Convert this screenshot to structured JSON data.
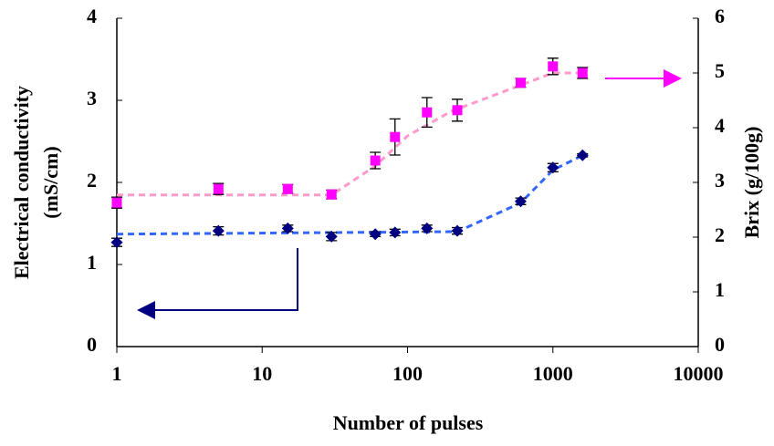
{
  "chart_data": {
    "type": "scatter",
    "xlabel": "Number of pulses",
    "ylabel": [
      "Electrical conductivity",
      "(mS/cm)"
    ],
    "y2label": "Brix (g/100g)",
    "xscale": "log",
    "xlim": [
      1,
      10000
    ],
    "xticks": [
      1,
      10,
      100,
      1000,
      10000
    ],
    "ylim": [
      0,
      4
    ],
    "yticks": [
      0,
      1,
      2,
      3,
      4
    ],
    "y2lim": [
      0,
      6
    ],
    "y2ticks": [
      0,
      1,
      2,
      3,
      4,
      5,
      6
    ],
    "grid": false,
    "series": [
      {
        "color": "#000080",
        "marker": "diamond",
        "axis": "y",
        "x": [
          1,
          5,
          15,
          30,
          60,
          82,
          136,
          220,
          600,
          1000,
          1600
        ],
        "values": [
          1.27,
          1.41,
          1.44,
          1.34,
          1.37,
          1.39,
          1.44,
          1.41,
          1.77,
          2.18,
          2.33
        ],
        "errors": [
          0.05,
          0.05,
          0.04,
          0.05,
          0.03,
          0.04,
          0.04,
          0.04,
          0.04,
          0.05,
          0.02
        ]
      },
      {
        "color": "#ff00ff",
        "marker": "square",
        "axis": "y2",
        "x": [
          1,
          5,
          15,
          30,
          60,
          82,
          136,
          220,
          600,
          1000,
          1600
        ],
        "values": [
          2.63,
          2.88,
          2.88,
          2.78,
          3.4,
          3.83,
          4.28,
          4.32,
          4.82,
          5.12,
          5.0
        ],
        "errors": [
          0.1,
          0.1,
          0.08,
          0.08,
          0.15,
          0.33,
          0.27,
          0.2,
          0.08,
          0.15,
          0.1
        ]
      },
      {
        "color": "#3366ff",
        "marker": "dashed-line",
        "axis": "y",
        "x": [
          1,
          220,
          600,
          1000,
          1600
        ],
        "values": [
          1.37,
          1.4,
          1.75,
          2.15,
          2.33
        ]
      },
      {
        "color": "#ff99cc",
        "marker": "dashed-line",
        "axis": "y2",
        "x": [
          1,
          30,
          60,
          100,
          200,
          400,
          1000,
          1600
        ],
        "values": [
          2.77,
          2.77,
          3.3,
          3.85,
          4.3,
          4.6,
          5.0,
          5.0
        ]
      }
    ]
  }
}
